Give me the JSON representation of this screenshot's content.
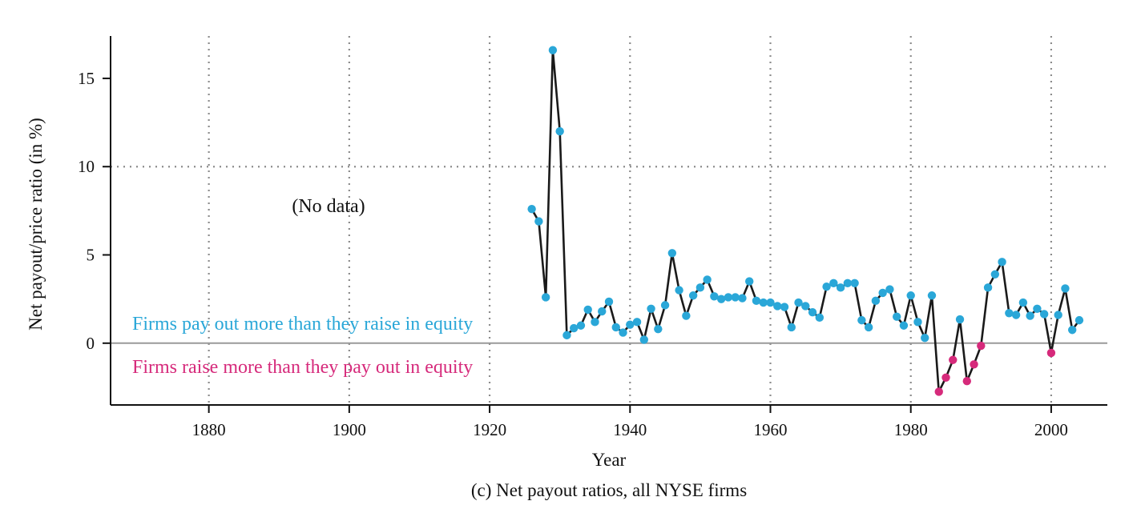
{
  "chart_data": {
    "type": "scatter",
    "caption": "(c) Net payout ratios, all NYSE firms",
    "xlabel": "Year",
    "ylabel": "Net payout/price ratio (in %)",
    "xlim": [
      1866,
      2008
    ],
    "ylim": [
      -3.5,
      17.4
    ],
    "xticks": [
      1880,
      1900,
      1920,
      1940,
      1960,
      1980,
      2000
    ],
    "yticks": [
      0,
      5,
      10,
      15
    ],
    "grid": "vertical dotted at x ticks; horizontal dotted at y=10",
    "reference_line_y": 0,
    "annotations": {
      "no_data": "(No data)",
      "positive": "Firms pay out more than they raise in equity",
      "negative": "Firms raise more than they pay out in equity"
    },
    "colors": {
      "line": "#1a1a1a",
      "positive": "#2aa7d8",
      "negative": "#d62a7b",
      "grid": "#8c8c8c",
      "zero_line": "#9a9a9a"
    },
    "series": [
      {
        "x": [
          1926,
          1927,
          1928,
          1929,
          1930,
          1931,
          1932,
          1933,
          1934,
          1935,
          1936,
          1937,
          1938,
          1939,
          1940,
          1941,
          1942,
          1943,
          1944,
          1945,
          1946,
          1947,
          1948,
          1949,
          1950,
          1951,
          1952,
          1953,
          1954,
          1955,
          1956,
          1957,
          1958,
          1959,
          1960,
          1961,
          1962,
          1963,
          1964,
          1965,
          1966,
          1967,
          1968,
          1969,
          1970,
          1971,
          1972,
          1973,
          1974,
          1975,
          1976,
          1977,
          1978,
          1979,
          1980,
          1981,
          1982,
          1983,
          1984,
          1985,
          1986,
          1987,
          1988,
          1989,
          1990,
          1991,
          1992,
          1993,
          1994,
          1995,
          1996,
          1997,
          1998,
          1999,
          2000,
          2001,
          2002,
          2003,
          2004
        ],
        "y": [
          7.6,
          6.9,
          2.6,
          16.6,
          12.0,
          0.45,
          0.85,
          1.0,
          1.9,
          1.2,
          1.8,
          2.35,
          0.9,
          0.6,
          1.05,
          1.2,
          0.2,
          1.95,
          0.8,
          2.15,
          5.1,
          3.0,
          1.55,
          2.7,
          3.15,
          3.6,
          2.65,
          2.5,
          2.6,
          2.6,
          2.55,
          3.5,
          2.4,
          2.3,
          2.3,
          2.1,
          2.05,
          0.9,
          2.3,
          2.1,
          1.75,
          1.45,
          3.2,
          3.4,
          3.15,
          3.4,
          3.4,
          1.3,
          0.9,
          2.4,
          2.85,
          3.05,
          1.5,
          1.0,
          2.7,
          1.2,
          0.3,
          2.7,
          -2.75,
          -1.95,
          -0.95,
          1.35,
          -2.15,
          -1.2,
          -0.15,
          3.15,
          3.9,
          4.6,
          1.7,
          1.6,
          2.3,
          1.55,
          1.95,
          1.65,
          -0.55,
          1.6,
          3.1,
          0.75,
          1.3
        ]
      }
    ]
  }
}
